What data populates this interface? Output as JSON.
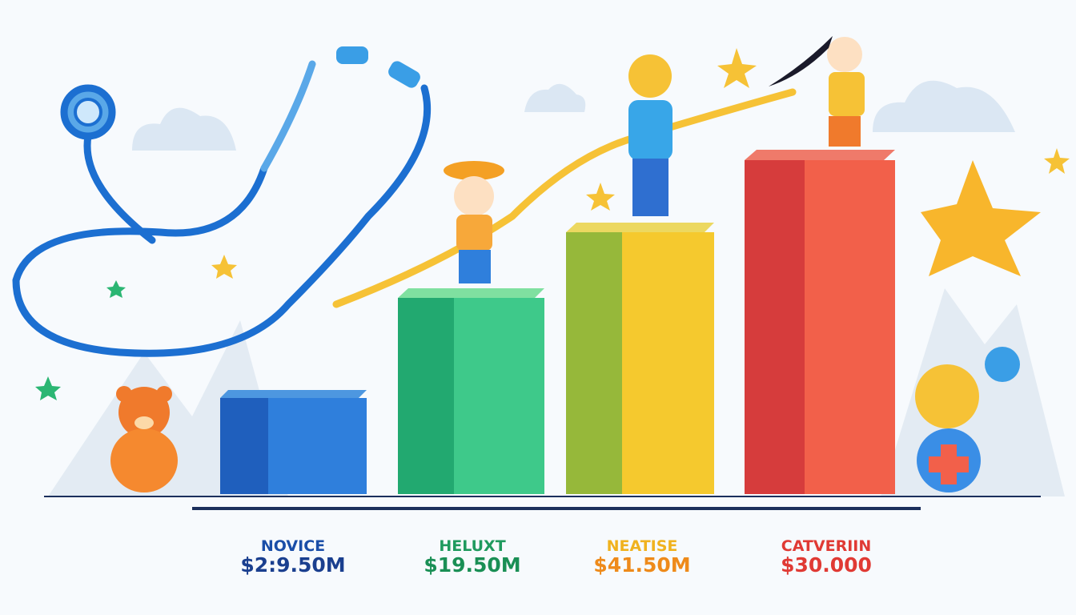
{
  "labels": [
    {
      "name": "NOVICE",
      "amount": "$2:9.50M"
    },
    {
      "name": "HELUXT",
      "amount": "$19.50M"
    },
    {
      "name": "NEATISE",
      "amount": "$41.50M"
    },
    {
      "name": "CATVERIIN",
      "amount": "$30.000"
    }
  ]
}
